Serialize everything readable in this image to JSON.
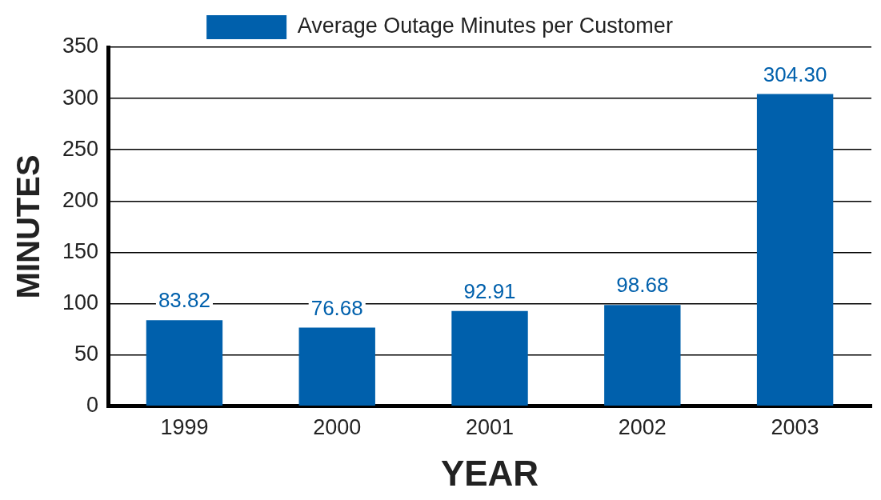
{
  "chart_data": {
    "type": "bar",
    "xlabel": "YEAR",
    "ylabel": "MINUTES",
    "categories": [
      "1999",
      "2000",
      "2001",
      "2002",
      "2003"
    ],
    "series": [
      {
        "name": "Average Outage Minutes per Customer",
        "color": "#0060ac",
        "values": [
          83.82,
          76.68,
          92.91,
          98.68,
          304.3
        ],
        "value_labels": [
          "83.82",
          "76.68",
          "92.91",
          "98.68",
          "304.30"
        ]
      }
    ],
    "ylim": [
      0,
      350
    ],
    "yticks": [
      0,
      50,
      100,
      150,
      200,
      250,
      300,
      350
    ],
    "grid": "y",
    "legend": "top"
  }
}
